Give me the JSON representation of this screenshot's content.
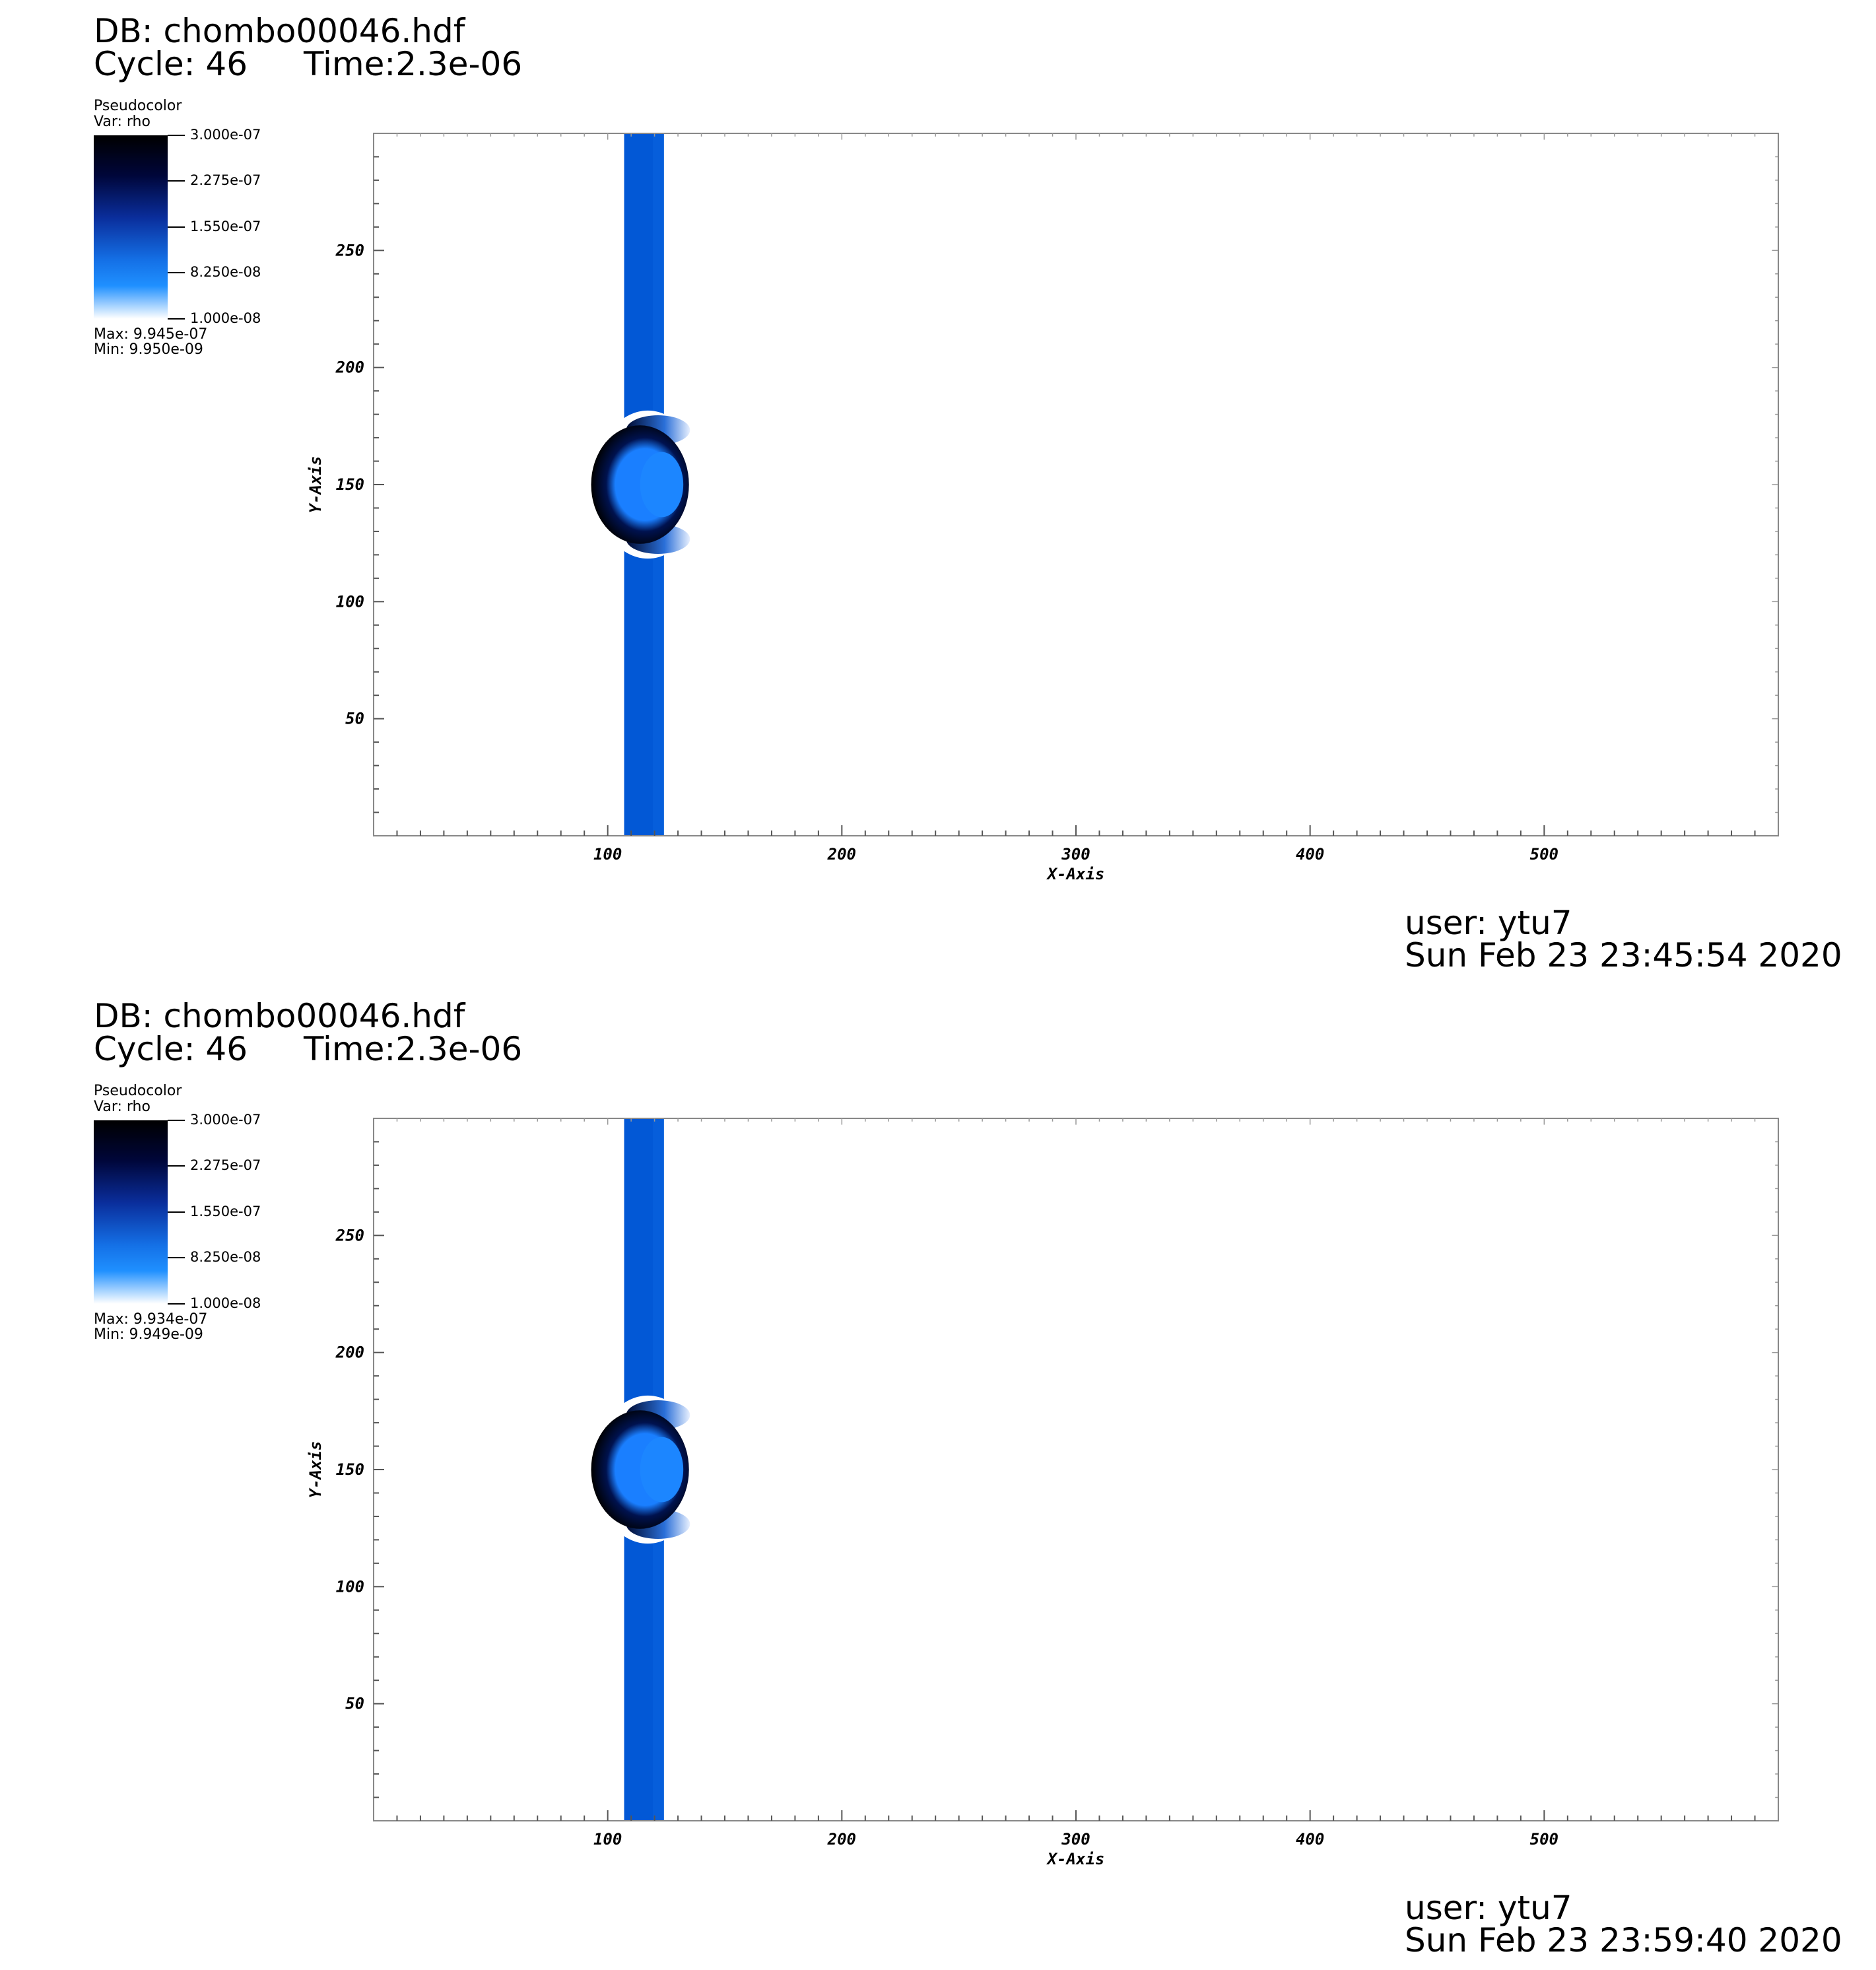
{
  "panels": [
    {
      "db": "DB: chombo00046.hdf",
      "cycle": "Cycle: 46",
      "time": "Time:2.3e-06",
      "legend": {
        "plot_type": "Pseudocolor",
        "var": "Var: rho",
        "ticks": [
          "3.000e-07",
          "2.275e-07",
          "1.550e-07",
          "8.250e-08",
          "1.000e-08"
        ],
        "max": "Max:  9.945e-07",
        "min": "Min:  9.950e-09"
      },
      "user": "user: ytu7",
      "date": "Sun Feb 23 23:45:54 2020"
    },
    {
      "db": "DB: chombo00046.hdf",
      "cycle": "Cycle: 46",
      "time": "Time:2.3e-06",
      "legend": {
        "plot_type": "Pseudocolor",
        "var": "Var: rho",
        "ticks": [
          "3.000e-07",
          "2.275e-07",
          "1.550e-07",
          "8.250e-08",
          "1.000e-08"
        ],
        "max": "Max:  9.934e-07",
        "min": "Min:  9.949e-09"
      },
      "user": "user: ytu7",
      "date": "Sun Feb 23 23:59:40 2020"
    }
  ],
  "chart_data": [
    {
      "type": "heatmap",
      "title": "",
      "xlabel": "X-Axis",
      "ylabel": "Y-Axis",
      "xlim": [
        0,
        600
      ],
      "ylim": [
        0,
        300
      ],
      "xticks": [
        100,
        200,
        300,
        400,
        500
      ],
      "yticks": [
        50,
        100,
        150,
        200,
        250
      ],
      "colormap": {
        "low": "#ffffff",
        "mid": "#1f90ff",
        "high": "#000000"
      },
      "features": {
        "band_x": [
          107,
          124
        ],
        "band_value": 1.2e-07,
        "bow_center": [
          116,
          150
        ],
        "bow_radius": 22
      }
    },
    {
      "type": "heatmap",
      "title": "",
      "xlabel": "X-Axis",
      "ylabel": "Y-Axis",
      "xlim": [
        0,
        600
      ],
      "ylim": [
        0,
        300
      ],
      "xticks": [
        100,
        200,
        300,
        400,
        500
      ],
      "yticks": [
        50,
        100,
        150,
        200,
        250
      ],
      "colormap": {
        "low": "#ffffff",
        "mid": "#1f90ff",
        "high": "#000000"
      },
      "features": {
        "band_x": [
          107,
          124
        ],
        "band_value": 1.2e-07,
        "bow_center": [
          116,
          150
        ],
        "bow_radius": 22
      }
    }
  ]
}
